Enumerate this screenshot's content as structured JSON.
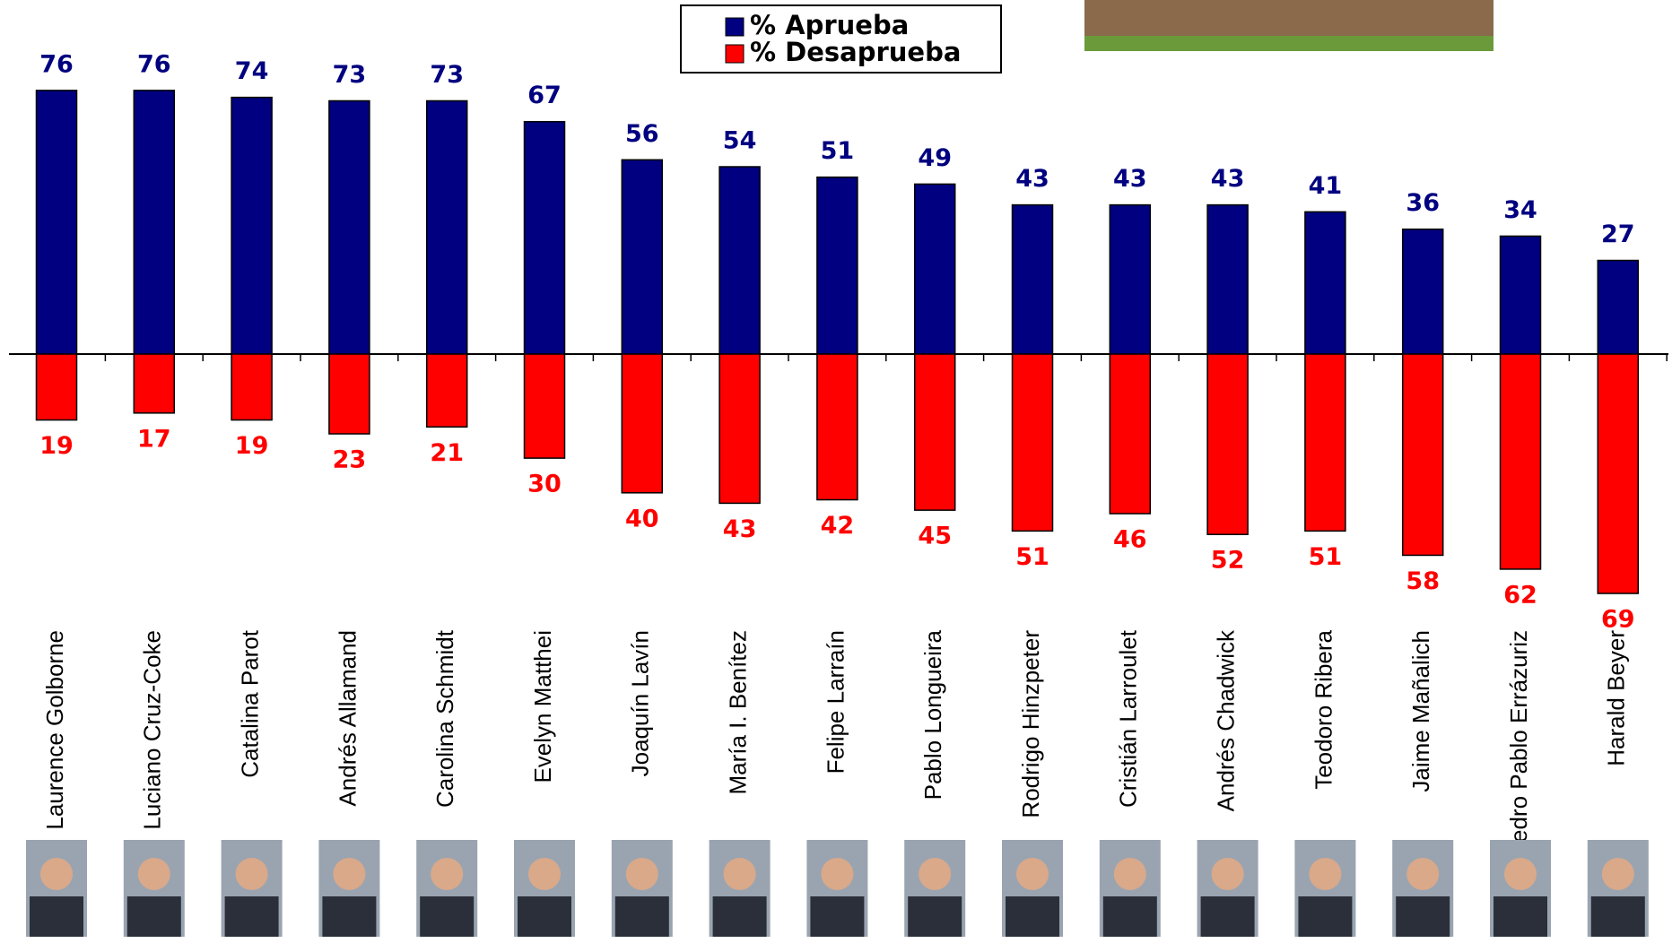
{
  "chart_data": {
    "type": "diverging-bar",
    "categories": [
      "Laurence Golborne",
      "Luciano Cruz-Coke",
      "Catalina Parot",
      "Andrés Allamand",
      "Carolina Schmidt",
      "Evelyn Matthei",
      "Joaquín Lavín",
      "María I. Benítez",
      "Felipe Larraín",
      "Pablo Longueira",
      "Rodrigo Hinzpeter",
      "Cristián Larroulet",
      "Andrés Chadwick",
      "Teodoro Ribera",
      "Jaime Mañalich",
      "Pedro Pablo Errázuriz",
      "Harald Beyer"
    ],
    "series": [
      {
        "name": "% Aprueba",
        "color": "#000080",
        "values": [
          76,
          76,
          74,
          73,
          73,
          67,
          56,
          54,
          51,
          49,
          43,
          43,
          43,
          41,
          36,
          34,
          27
        ]
      },
      {
        "name": "% Desaprueba",
        "color": "#ff0000",
        "values": [
          19,
          17,
          19,
          23,
          21,
          30,
          40,
          43,
          42,
          45,
          51,
          46,
          52,
          51,
          58,
          62,
          69
        ]
      }
    ],
    "legend_position": "top"
  }
}
